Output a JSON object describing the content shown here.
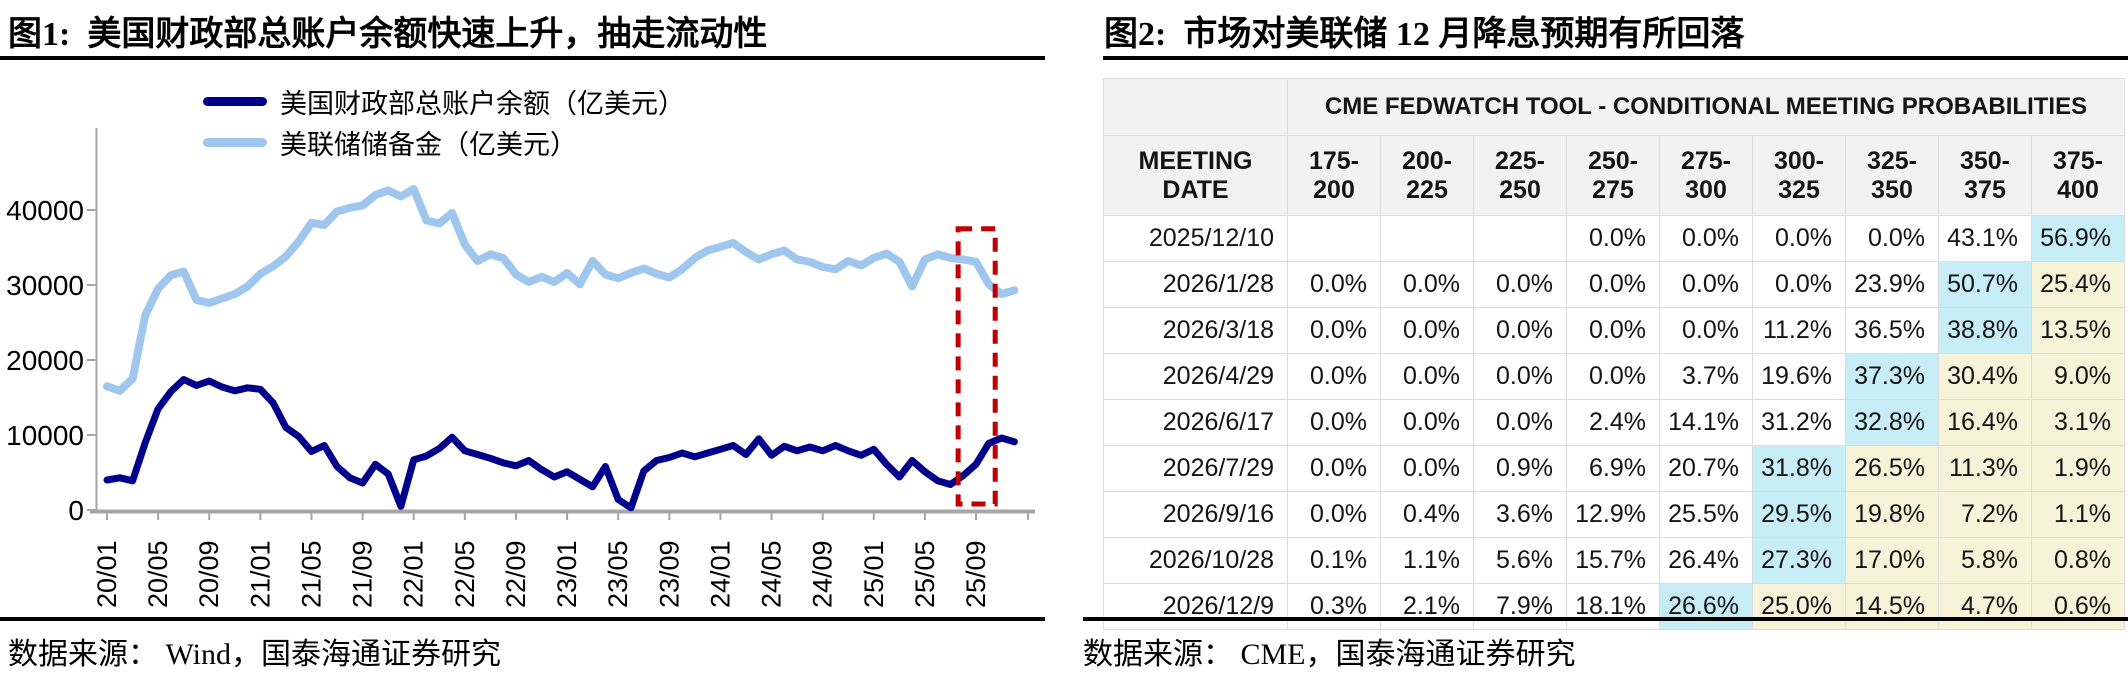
{
  "figure1": {
    "title": "图1:  美国财政部总账户余额快速上升，抽走流动性",
    "source": "数据来源： Wind，国泰海通证券研究",
    "chart_data": {
      "type": "line",
      "title": "",
      "xlabel": "",
      "ylabel": "",
      "unit": "亿美元",
      "ylim": [
        0,
        45000
      ],
      "y_ticks": [
        0,
        10000,
        20000,
        30000,
        40000
      ],
      "x_tick_labels": [
        "20/01",
        "20/05",
        "20/09",
        "21/01",
        "21/05",
        "21/09",
        "22/01",
        "22/05",
        "22/09",
        "23/01",
        "23/05",
        "23/09",
        "24/01",
        "24/05",
        "24/09",
        "25/01",
        "25/05",
        "25/09"
      ],
      "x_tick_every_months": 4,
      "grid": false,
      "legend_position": "top",
      "series": [
        {
          "name": "美联储储备金（亿美元）",
          "color": "#9FC6EC",
          "stroke_width": 8,
          "values": [
            16500,
            15900,
            17500,
            26000,
            29500,
            31300,
            31800,
            28000,
            27600,
            28200,
            28800,
            29800,
            31500,
            32500,
            33800,
            35800,
            38300,
            38000,
            39800,
            40300,
            40600,
            42000,
            42600,
            41800,
            42800,
            38600,
            38200,
            39600,
            35400,
            33200,
            34100,
            33600,
            31400,
            30400,
            31100,
            30400,
            31600,
            30100,
            33200,
            31400,
            30900,
            31600,
            32200,
            31500,
            31000,
            32100,
            33600,
            34600,
            35100,
            35600,
            34400,
            33400,
            34100,
            34600,
            33400,
            33100,
            32400,
            32100,
            33200,
            32600,
            33600,
            34200,
            33100,
            29800,
            33400,
            34100,
            33600,
            33400,
            33100,
            30100,
            28800,
            29300
          ]
        },
        {
          "name": "美国财政部总账户余额（亿美元）",
          "color": "#00008B",
          "stroke_width": 7,
          "values": [
            4000,
            4300,
            3900,
            9000,
            13500,
            15800,
            17400,
            16600,
            17200,
            16400,
            15900,
            16300,
            16100,
            14300,
            11000,
            9800,
            7800,
            8600,
            5800,
            4300,
            3600,
            6100,
            4800,
            500,
            6700,
            7200,
            8200,
            9700,
            7900,
            7400,
            6900,
            6300,
            5900,
            6600,
            5400,
            4400,
            5100,
            4100,
            3100,
            5800,
            1400,
            300,
            5200,
            6600,
            7000,
            7600,
            7100,
            7600,
            8100,
            8600,
            7400,
            9500,
            7300,
            8500,
            7900,
            8400,
            7900,
            8600,
            7900,
            7300,
            8100,
            6100,
            4400,
            6600,
            5100,
            3900,
            3400,
            4600,
            6100,
            8900,
            9600,
            9100
          ]
        }
      ],
      "annotation_box": {
        "type": "dashed-rect",
        "color": "#C00000",
        "x_month_from": 66.6,
        "x_month_to": 69.5,
        "y_from": 800,
        "y_to": 37500
      }
    }
  },
  "figure2": {
    "title": "图2:  市场对美联储 12 月降息预期有所回落",
    "source": "数据来源： CME，国泰海通证券研究",
    "table": {
      "banner": "CME FEDWATCH TOOL - CONDITIONAL MEETING PROBABILITIES",
      "columns": [
        "MEETING DATE",
        "175-200",
        "200-225",
        "225-250",
        "250-275",
        "275-300",
        "300-325",
        "325-350",
        "350-375",
        "375-400"
      ],
      "colors": {
        "peak_highlight": "#c7edf7",
        "after_peak_highlight": "#f6f3d8",
        "header_bg": "#f2f2f2"
      },
      "rows": [
        {
          "date": "2025/12/10",
          "cells": [
            "",
            "",
            "",
            "0.0%",
            "0.0%",
            "0.0%",
            "0.0%",
            "43.1%",
            "56.9%"
          ],
          "peak_col": 8
        },
        {
          "date": "2026/1/28",
          "cells": [
            "0.0%",
            "0.0%",
            "0.0%",
            "0.0%",
            "0.0%",
            "0.0%",
            "23.9%",
            "50.7%",
            "25.4%"
          ],
          "peak_col": 7
        },
        {
          "date": "2026/3/18",
          "cells": [
            "0.0%",
            "0.0%",
            "0.0%",
            "0.0%",
            "0.0%",
            "11.2%",
            "36.5%",
            "38.8%",
            "13.5%"
          ],
          "peak_col": 7
        },
        {
          "date": "2026/4/29",
          "cells": [
            "0.0%",
            "0.0%",
            "0.0%",
            "0.0%",
            "3.7%",
            "19.6%",
            "37.3%",
            "30.4%",
            "9.0%"
          ],
          "peak_col": 6
        },
        {
          "date": "2026/6/17",
          "cells": [
            "0.0%",
            "0.0%",
            "0.0%",
            "2.4%",
            "14.1%",
            "31.2%",
            "32.8%",
            "16.4%",
            "3.1%"
          ],
          "peak_col": 6
        },
        {
          "date": "2026/7/29",
          "cells": [
            "0.0%",
            "0.0%",
            "0.9%",
            "6.9%",
            "20.7%",
            "31.8%",
            "26.5%",
            "11.3%",
            "1.9%"
          ],
          "peak_col": 5
        },
        {
          "date": "2026/9/16",
          "cells": [
            "0.0%",
            "0.4%",
            "3.6%",
            "12.9%",
            "25.5%",
            "29.5%",
            "19.8%",
            "7.2%",
            "1.1%"
          ],
          "peak_col": 5
        },
        {
          "date": "2026/10/28",
          "cells": [
            "0.1%",
            "1.1%",
            "5.6%",
            "15.7%",
            "26.4%",
            "27.3%",
            "17.0%",
            "5.8%",
            "0.8%"
          ],
          "peak_col": 5
        },
        {
          "date": "2026/12/9",
          "cells": [
            "0.3%",
            "2.1%",
            "7.9%",
            "18.1%",
            "26.6%",
            "25.0%",
            "14.5%",
            "4.7%",
            "0.6%"
          ],
          "peak_col": 4
        }
      ]
    }
  }
}
